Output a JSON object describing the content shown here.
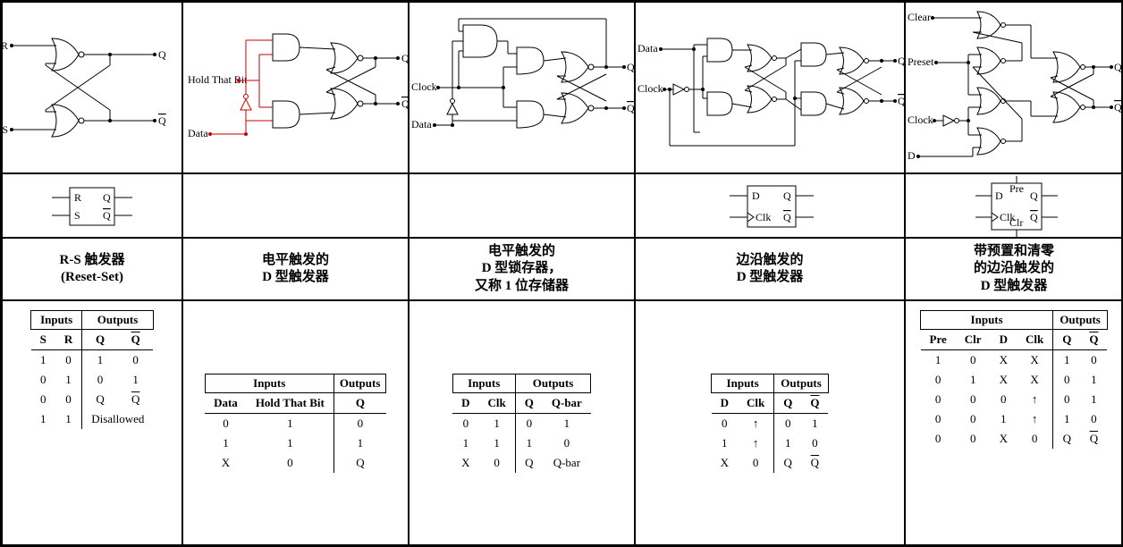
{
  "col1": {
    "title": "R-S 触发器\n(Reset-Set)",
    "inputs_label": "Inputs",
    "outputs_label": "Outputs",
    "in_cols": [
      "S",
      "R"
    ],
    "out_cols": [
      "Q",
      "Q̄"
    ],
    "rows": [
      [
        "1",
        "0",
        "1",
        "0"
      ],
      [
        "0",
        "1",
        "0",
        "1"
      ],
      [
        "0",
        "0",
        "Q",
        "Q̄"
      ],
      [
        "1",
        "1",
        "Disallowed",
        ""
      ]
    ],
    "last_row_colspan": true,
    "circuit_labels": {
      "R": "R",
      "S": "S",
      "Q": "Q",
      "Qb": "Q̄"
    },
    "symbol": {
      "tl": "R",
      "bl": "S",
      "tr": "Q",
      "br": "Q̄"
    }
  },
  "col2": {
    "title": "电平触发的\nD 型触发器",
    "inputs_label": "Inputs",
    "outputs_label": "Outputs",
    "in_cols": [
      "Data",
      "Hold That Bit"
    ],
    "out_cols": [
      "Q"
    ],
    "rows": [
      [
        "0",
        "1",
        "0"
      ],
      [
        "1",
        "1",
        "1"
      ],
      [
        "X",
        "0",
        "Q"
      ]
    ],
    "circuit_labels": {
      "hold": "Hold That Bit",
      "data": "Data",
      "Q": "Q",
      "Qb": "Q̄"
    }
  },
  "col3": {
    "title": "电平触发的\nD 型锁存器，\n又称 1 位存储器",
    "inputs_label": "Inputs",
    "outputs_label": "Outputs",
    "in_cols": [
      "D",
      "Clk"
    ],
    "out_cols": [
      "Q",
      "Q-bar"
    ],
    "rows": [
      [
        "0",
        "1",
        "0",
        "1"
      ],
      [
        "1",
        "1",
        "1",
        "0"
      ],
      [
        "X",
        "0",
        "Q",
        "Q-bar"
      ]
    ],
    "circuit_labels": {
      "clock": "Clock",
      "data": "Data",
      "Q": "Q",
      "Qb": "Q̄"
    }
  },
  "col4": {
    "title": "边沿触发的\nD 型触发器",
    "inputs_label": "Inputs",
    "outputs_label": "Outputs",
    "in_cols": [
      "D",
      "Clk"
    ],
    "out_cols": [
      "Q",
      "Q̄"
    ],
    "rows": [
      [
        "0",
        "↑",
        "0",
        "1"
      ],
      [
        "1",
        "↑",
        "1",
        "0"
      ],
      [
        "X",
        "0",
        "Q",
        "Q̄"
      ]
    ],
    "circuit_labels": {
      "data": "Data",
      "clock": "Clock",
      "Q": "Q",
      "Qb": "Q̄"
    },
    "symbol": {
      "tl": "D",
      "bl": "Clk",
      "tr": "Q",
      "br": "Q̄",
      "bl_edge": true
    }
  },
  "col5": {
    "title": "带预置和清零\n的边沿触发的\nD 型触发器",
    "inputs_label": "Inputs",
    "outputs_label": "Outputs",
    "in_cols": [
      "Pre",
      "Clr",
      "D",
      "Clk"
    ],
    "out_cols": [
      "Q",
      "Q̄"
    ],
    "rows": [
      [
        "1",
        "0",
        "X",
        "X",
        "1",
        "0"
      ],
      [
        "0",
        "1",
        "X",
        "X",
        "0",
        "1"
      ],
      [
        "0",
        "0",
        "0",
        "↑",
        "0",
        "1"
      ],
      [
        "0",
        "0",
        "1",
        "↑",
        "1",
        "0"
      ],
      [
        "0",
        "0",
        "X",
        "0",
        "Q",
        "Q̄"
      ]
    ],
    "circuit_labels": {
      "clear": "Clear",
      "preset": "Preset",
      "clock": "Clock",
      "D": "D",
      "Q": "Q",
      "Qb": "Q̄"
    },
    "symbol": {
      "top": "Pre",
      "bot": "Clr",
      "tl": "D",
      "bl": "Clk",
      "tr": "Q",
      "br": "Q̄",
      "bl_edge": true
    }
  },
  "style": {
    "border_color": "#000000",
    "highlight_color": "#cc0000",
    "bg": "#ffffff",
    "font": "Times New Roman"
  }
}
